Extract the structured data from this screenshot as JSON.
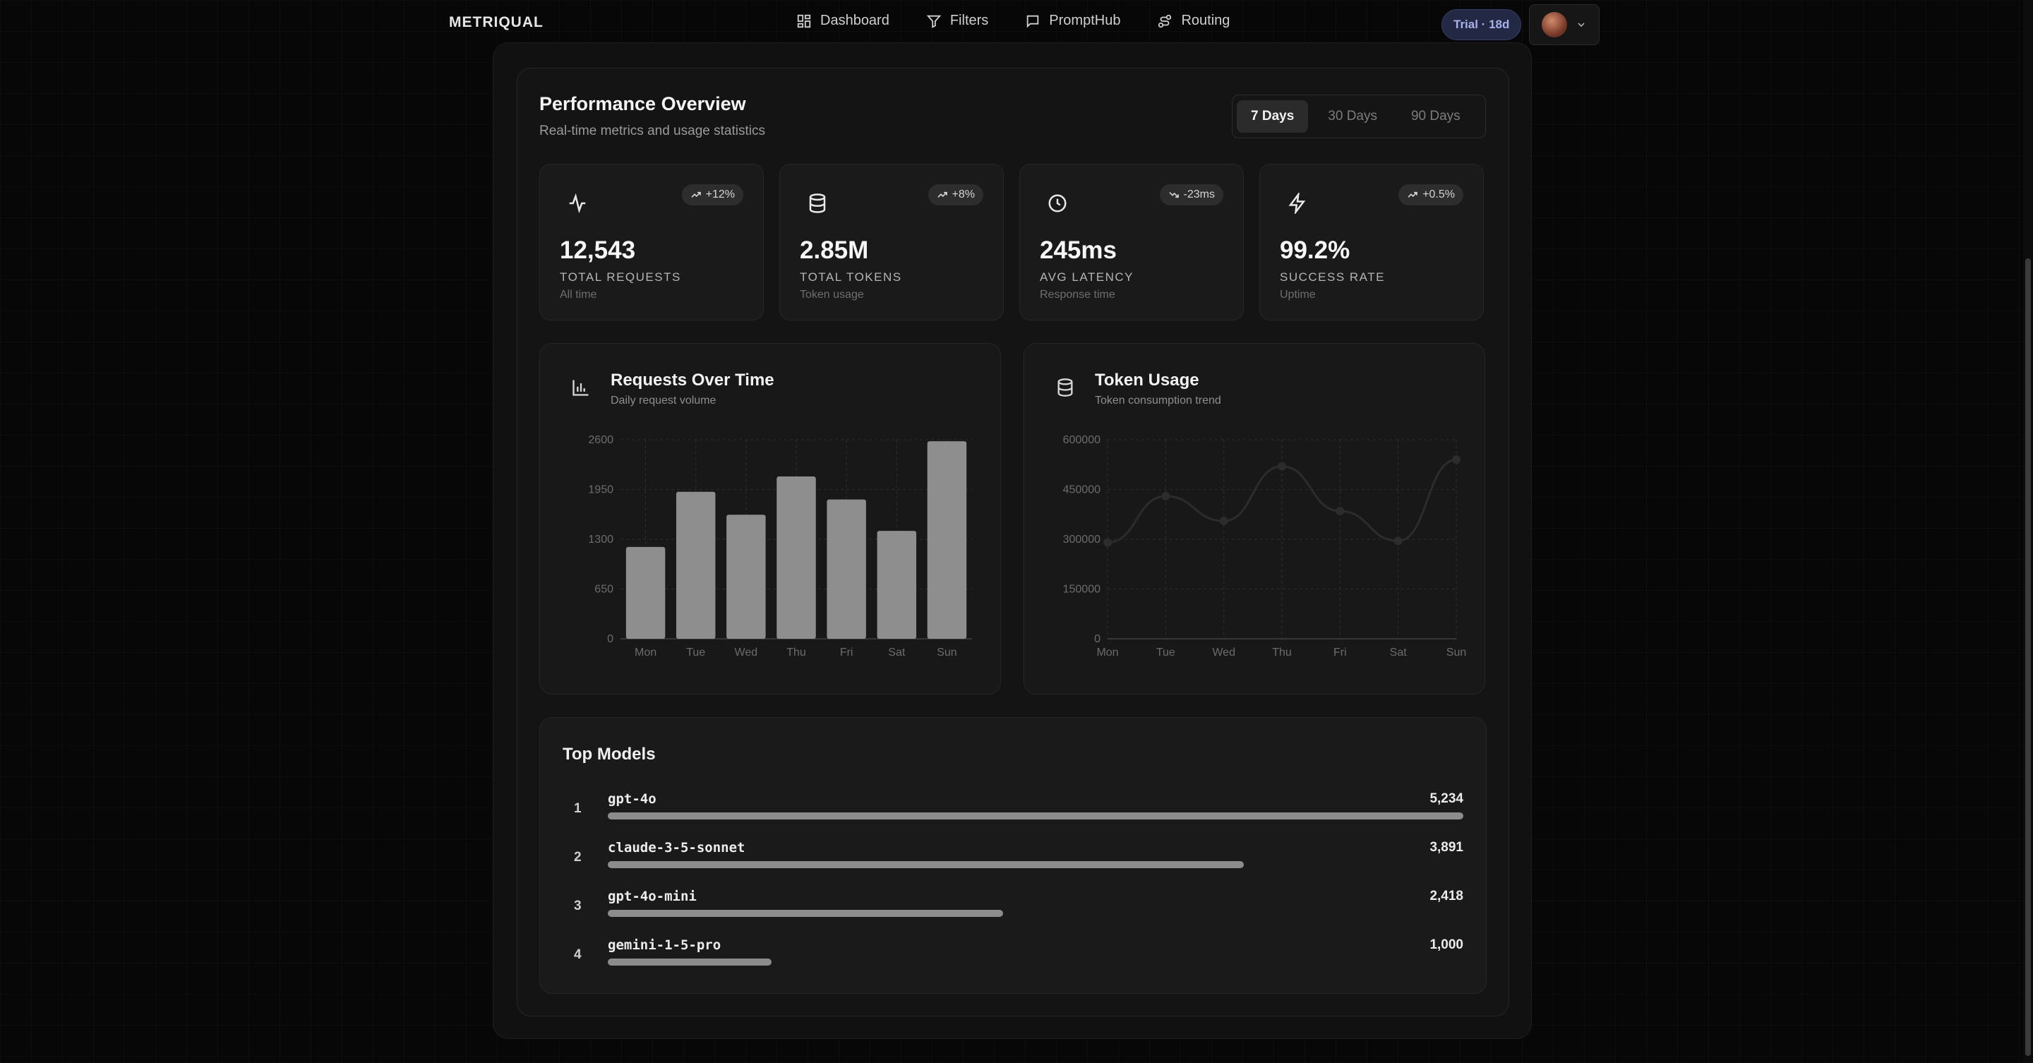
{
  "app": {
    "logo": "METRIQUAL"
  },
  "nav": {
    "items": [
      {
        "label": "Dashboard",
        "icon": "dashboard-icon"
      },
      {
        "label": "Filters",
        "icon": "filter-icon"
      },
      {
        "label": "PromptHub",
        "icon": "message-icon"
      },
      {
        "label": "Routing",
        "icon": "routing-icon"
      }
    ],
    "trial": "Trial · 18d"
  },
  "overview": {
    "title": "Performance Overview",
    "subtitle": "Real-time metrics and usage statistics",
    "ranges": [
      "7 Days",
      "30 Days",
      "90 Days"
    ],
    "active_range": "7 Days"
  },
  "stats": [
    {
      "value": "12,543",
      "label": "TOTAL REQUESTS",
      "sub": "All time",
      "badge": "+12%",
      "trend": "up",
      "icon": "activity-icon"
    },
    {
      "value": "2.85M",
      "label": "TOTAL TOKENS",
      "sub": "Token usage",
      "badge": "+8%",
      "trend": "up",
      "icon": "database-icon"
    },
    {
      "value": "245ms",
      "label": "AVG LATENCY",
      "sub": "Response time",
      "badge": "-23ms",
      "trend": "down",
      "icon": "clock-icon"
    },
    {
      "value": "99.2%",
      "label": "SUCCESS RATE",
      "sub": "Uptime",
      "badge": "+0.5%",
      "trend": "up",
      "icon": "lightning-icon"
    }
  ],
  "charts": {
    "requests": {
      "title": "Requests Over Time",
      "subtitle": "Daily request volume"
    },
    "tokens": {
      "title": "Token Usage",
      "subtitle": "Token consumption trend"
    }
  },
  "chart_data": [
    {
      "type": "bar",
      "title": "Requests Over Time",
      "categories": [
        "Mon",
        "Tue",
        "Wed",
        "Thu",
        "Fri",
        "Sat",
        "Sun"
      ],
      "values": [
        1200,
        1920,
        1620,
        2120,
        1820,
        1410,
        2580
      ],
      "ylim": [
        0,
        2600
      ],
      "yticks": [
        0,
        650,
        1300,
        1950,
        2600
      ],
      "color": "#8e8e8e"
    },
    {
      "type": "line",
      "title": "Token Usage",
      "categories": [
        "Mon",
        "Tue",
        "Wed",
        "Thu",
        "Fri",
        "Sat",
        "Sun"
      ],
      "values": [
        290000,
        430000,
        355000,
        520000,
        385000,
        295000,
        540000
      ],
      "ylim": [
        0,
        600000
      ],
      "yticks": [
        0,
        150000,
        300000,
        450000,
        600000
      ],
      "color": "#2c2c2c"
    }
  ],
  "models": {
    "title": "Top Models",
    "items": [
      {
        "rank": "1",
        "name": "gpt-4o",
        "count": "5,234",
        "value": 5234
      },
      {
        "rank": "2",
        "name": "claude-3-5-sonnet",
        "count": "3,891",
        "value": 3891
      },
      {
        "rank": "3",
        "name": "gpt-4o-mini",
        "count": "2,418",
        "value": 2418
      },
      {
        "rank": "4",
        "name": "gemini-1-5-pro",
        "count": "1,000",
        "value": 1000
      }
    ]
  }
}
